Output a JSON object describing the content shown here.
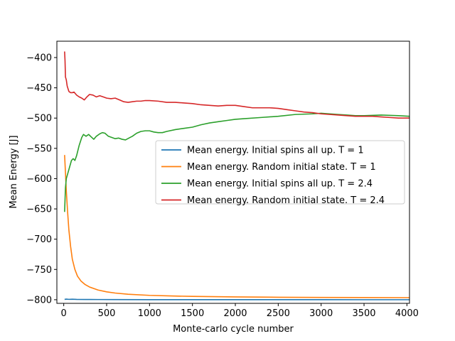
{
  "chart_data": {
    "type": "line",
    "title": "",
    "xlabel": "Monte-carlo cycle number",
    "ylabel": "Mean Energy [J]",
    "xlim": [
      -80,
      4030
    ],
    "ylim": [
      -806,
      -373
    ],
    "xticks": [
      0,
      500,
      1000,
      1500,
      2000,
      2500,
      3000,
      3500,
      4000
    ],
    "yticks": [
      -800,
      -750,
      -700,
      -650,
      -600,
      -550,
      -500,
      -450,
      -400
    ],
    "grid": false,
    "legend_position": "center-right",
    "series": [
      {
        "name": "Mean energy. Initial spins all up. T = 1",
        "color": "#1f77b4",
        "points": [
          [
            10,
            -799.5
          ],
          [
            30,
            -799.0
          ],
          [
            60,
            -799.4
          ],
          [
            100,
            -799.2
          ],
          [
            150,
            -799.5
          ],
          [
            250,
            -799.6
          ],
          [
            400,
            -799.7
          ],
          [
            600,
            -799.8
          ],
          [
            1000,
            -799.9
          ],
          [
            2000,
            -799.95
          ],
          [
            3000,
            -799.97
          ],
          [
            4030,
            -799.98
          ]
        ]
      },
      {
        "name": "Mean energy. Random initial state. T = 1",
        "color": "#ff7f0e",
        "points": [
          [
            10,
            -561
          ],
          [
            20,
            -590
          ],
          [
            30,
            -620
          ],
          [
            45,
            -655
          ],
          [
            60,
            -685
          ],
          [
            80,
            -712
          ],
          [
            100,
            -733
          ],
          [
            130,
            -750
          ],
          [
            160,
            -761
          ],
          [
            200,
            -769
          ],
          [
            250,
            -775
          ],
          [
            300,
            -779
          ],
          [
            400,
            -784
          ],
          [
            500,
            -787
          ],
          [
            600,
            -789
          ],
          [
            750,
            -791
          ],
          [
            1000,
            -792.8
          ],
          [
            1250,
            -793.8
          ],
          [
            1500,
            -794.5
          ],
          [
            2000,
            -795.4
          ],
          [
            2500,
            -795.9
          ],
          [
            3000,
            -796.2
          ],
          [
            3500,
            -796.4
          ],
          [
            4030,
            -796.6
          ]
        ]
      },
      {
        "name": "Mean energy. Initial spins all up. T = 2.4",
        "color": "#2ca02c",
        "points": [
          [
            10,
            -655
          ],
          [
            20,
            -615
          ],
          [
            30,
            -600
          ],
          [
            50,
            -590
          ],
          [
            70,
            -580
          ],
          [
            90,
            -570
          ],
          [
            110,
            -567
          ],
          [
            130,
            -570
          ],
          [
            150,
            -562
          ],
          [
            180,
            -545
          ],
          [
            210,
            -532
          ],
          [
            230,
            -527
          ],
          [
            260,
            -530
          ],
          [
            290,
            -527
          ],
          [
            320,
            -531
          ],
          [
            350,
            -535
          ],
          [
            380,
            -530
          ],
          [
            420,
            -526
          ],
          [
            450,
            -524
          ],
          [
            480,
            -525
          ],
          [
            520,
            -530
          ],
          [
            560,
            -532
          ],
          [
            600,
            -534
          ],
          [
            640,
            -533
          ],
          [
            680,
            -535
          ],
          [
            720,
            -536
          ],
          [
            760,
            -533
          ],
          [
            800,
            -530
          ],
          [
            850,
            -525
          ],
          [
            900,
            -522
          ],
          [
            950,
            -521
          ],
          [
            1000,
            -521
          ],
          [
            1050,
            -523
          ],
          [
            1100,
            -524
          ],
          [
            1150,
            -524
          ],
          [
            1200,
            -522
          ],
          [
            1300,
            -519
          ],
          [
            1400,
            -517
          ],
          [
            1500,
            -515
          ],
          [
            1600,
            -511
          ],
          [
            1700,
            -508
          ],
          [
            1800,
            -506
          ],
          [
            1900,
            -504
          ],
          [
            2000,
            -502
          ],
          [
            2100,
            -501
          ],
          [
            2300,
            -499
          ],
          [
            2500,
            -497
          ],
          [
            2700,
            -494
          ],
          [
            2900,
            -493
          ],
          [
            3000,
            -492
          ],
          [
            3100,
            -493
          ],
          [
            3200,
            -494
          ],
          [
            3300,
            -495
          ],
          [
            3400,
            -496
          ],
          [
            3500,
            -496
          ],
          [
            3700,
            -495
          ],
          [
            3900,
            -496
          ],
          [
            4030,
            -497
          ]
        ]
      },
      {
        "name": "Mean energy. Random initial state. T = 2.4",
        "color": "#d62728",
        "points": [
          [
            10,
            -390
          ],
          [
            15,
            -405
          ],
          [
            20,
            -432
          ],
          [
            30,
            -437
          ],
          [
            40,
            -447
          ],
          [
            60,
            -456
          ],
          [
            80,
            -458
          ],
          [
            100,
            -458
          ],
          [
            120,
            -457
          ],
          [
            150,
            -462
          ],
          [
            180,
            -465
          ],
          [
            210,
            -467
          ],
          [
            240,
            -470
          ],
          [
            270,
            -465
          ],
          [
            300,
            -461
          ],
          [
            340,
            -462
          ],
          [
            380,
            -465
          ],
          [
            420,
            -463
          ],
          [
            460,
            -465
          ],
          [
            500,
            -467
          ],
          [
            550,
            -468
          ],
          [
            600,
            -467
          ],
          [
            650,
            -470
          ],
          [
            700,
            -473
          ],
          [
            750,
            -474
          ],
          [
            800,
            -473
          ],
          [
            850,
            -472
          ],
          [
            900,
            -472
          ],
          [
            950,
            -471
          ],
          [
            1000,
            -471
          ],
          [
            1100,
            -472
          ],
          [
            1200,
            -474
          ],
          [
            1300,
            -474
          ],
          [
            1400,
            -475
          ],
          [
            1500,
            -476
          ],
          [
            1600,
            -478
          ],
          [
            1700,
            -479
          ],
          [
            1800,
            -480
          ],
          [
            1900,
            -479
          ],
          [
            2000,
            -479
          ],
          [
            2100,
            -481
          ],
          [
            2200,
            -483
          ],
          [
            2300,
            -483
          ],
          [
            2400,
            -483
          ],
          [
            2500,
            -484
          ],
          [
            2600,
            -486
          ],
          [
            2700,
            -488
          ],
          [
            2800,
            -490
          ],
          [
            2900,
            -491
          ],
          [
            3000,
            -493
          ],
          [
            3100,
            -494
          ],
          [
            3200,
            -495
          ],
          [
            3300,
            -496
          ],
          [
            3400,
            -497
          ],
          [
            3500,
            -497
          ],
          [
            3600,
            -497
          ],
          [
            3700,
            -498
          ],
          [
            3800,
            -499
          ],
          [
            3900,
            -500
          ],
          [
            4030,
            -500
          ]
        ]
      }
    ]
  }
}
